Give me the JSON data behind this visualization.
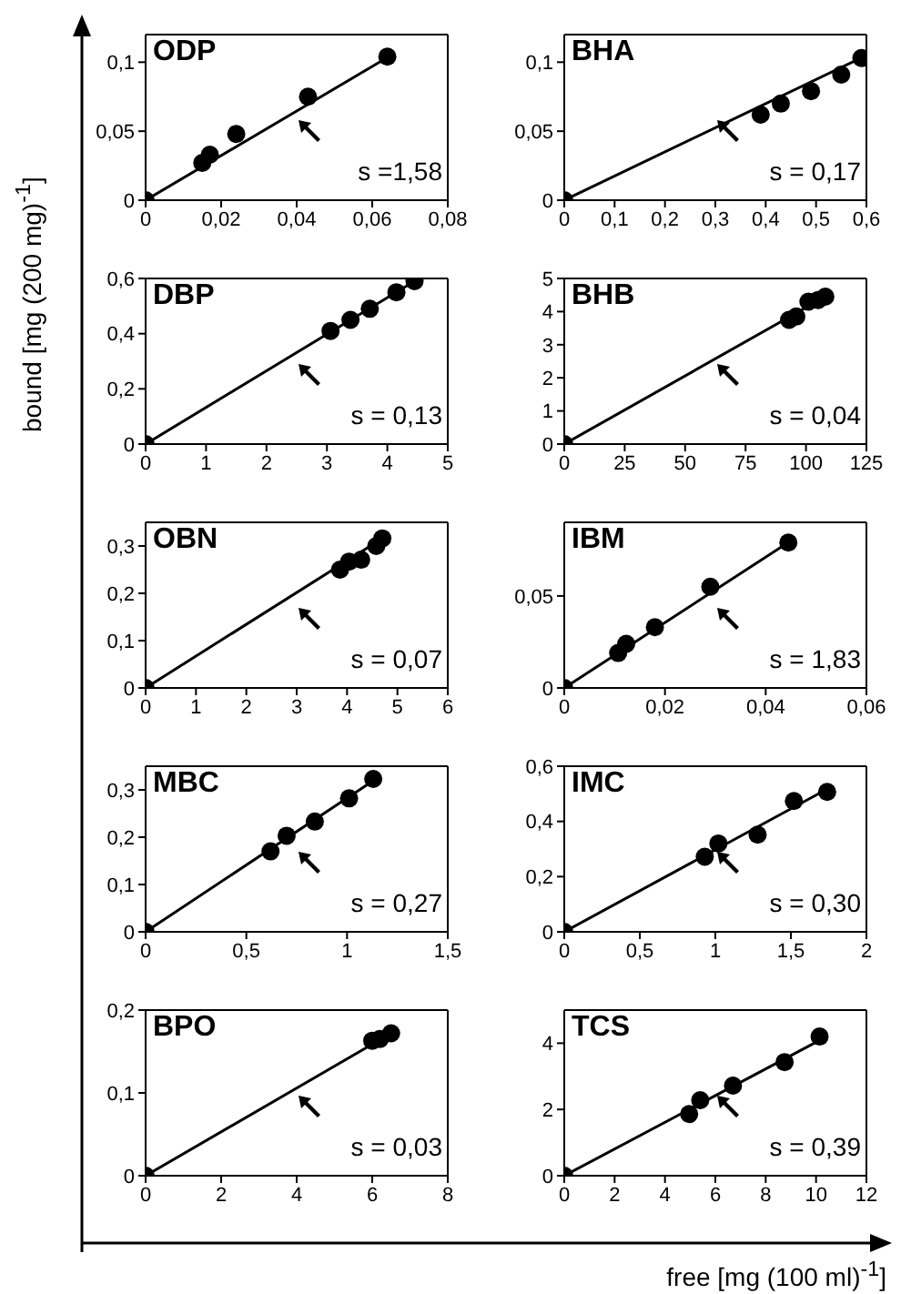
{
  "chart_data": [
    {
      "type": "scatter",
      "title": "ODP",
      "ylabel": "bound [mg (200 mg)$^{-1}$]",
      "xlim": [
        0,
        0.08
      ],
      "ylim": [
        0,
        0.12
      ],
      "xticks": [
        0,
        {
          "value": 0.02,
          "label": "0,02"
        },
        {
          "value": 0.04,
          "label": "0,04"
        },
        {
          "value": 0.06,
          "label": "0,06"
        },
        {
          "value": 0.08,
          "label": "0,08"
        }
      ],
      "yticks": [
        0,
        {
          "value": 0.05,
          "label": "0,05"
        },
        {
          "value": 0.1,
          "label": "0,1"
        }
      ],
      "annotations": [
        "s =1,58"
      ],
      "series": [
        {
          "type": "scatter",
          "color": "#000000",
          "marker": "circle",
          "x": [
            0,
            0.015,
            0.017,
            0.024,
            0.043,
            0.064
          ],
          "values": [
            0,
            0.027,
            0.033,
            0.048,
            0.075,
            0.104
          ]
        },
        {
          "type": "line",
          "color": "#000000",
          "marker": "none",
          "x": [
            0,
            0.065
          ],
          "values": [
            0,
            0.105
          ]
        }
      ]
    },
    {
      "type": "scatter",
      "title": "BHA",
      "xlim": [
        0,
        0.6
      ],
      "ylim": [
        0,
        0.12
      ],
      "xticks": [
        0,
        {
          "value": 0.1,
          "label": "0,1"
        },
        {
          "value": 0.2,
          "label": "0,2"
        },
        {
          "value": 0.3,
          "label": "0,3"
        },
        {
          "value": 0.4,
          "label": "0,4"
        },
        {
          "value": 0.5,
          "label": "0,5"
        },
        {
          "value": 0.6,
          "label": "0,6"
        }
      ],
      "yticks": [
        0,
        {
          "value": 0.05,
          "label": "0,05"
        },
        {
          "value": 0.1,
          "label": "0,1"
        }
      ],
      "annotations": [
        "s = 0,17"
      ],
      "series": [
        {
          "type": "scatter",
          "color": "#000000",
          "marker": "circle",
          "x": [
            0,
            0.39,
            0.43,
            0.49,
            0.55,
            0.59
          ],
          "values": [
            0,
            0.062,
            0.07,
            0.079,
            0.091,
            0.103
          ]
        },
        {
          "type": "line",
          "color": "#000000",
          "marker": "none",
          "x": [
            0,
            0.6
          ],
          "values": [
            0,
            0.105
          ]
        }
      ]
    },
    {
      "type": "scatter",
      "title": "DBP",
      "xlim": [
        0,
        5
      ],
      "ylim": [
        0,
        0.6
      ],
      "xticks": [
        0,
        1,
        2,
        3,
        4,
        5
      ],
      "yticks": [
        0,
        {
          "value": 0.2,
          "label": "0,2"
        },
        {
          "value": 0.4,
          "label": "0,4"
        },
        {
          "value": 0.6,
          "label": "0,6"
        }
      ],
      "annotations": [
        "s = 0,13"
      ],
      "series": [
        {
          "type": "scatter",
          "color": "#000000",
          "marker": "circle",
          "x": [
            0,
            3.06,
            3.39,
            3.71,
            4.15,
            4.45
          ],
          "values": [
            0,
            0.41,
            0.45,
            0.49,
            0.55,
            0.59
          ]
        },
        {
          "type": "line",
          "color": "#000000",
          "marker": "none",
          "x": [
            0,
            4.45
          ],
          "values": [
            0,
            0.59
          ]
        }
      ]
    },
    {
      "type": "scatter",
      "title": "BHB",
      "xlim": [
        0,
        125
      ],
      "ylim": [
        0,
        5
      ],
      "xticks": [
        0,
        25,
        50,
        75,
        100,
        125
      ],
      "yticks": [
        0,
        1,
        2,
        3,
        4,
        5
      ],
      "annotations": [
        "s = 0,04"
      ],
      "series": [
        {
          "type": "scatter",
          "color": "#000000",
          "marker": "circle",
          "x": [
            0,
            93,
            96,
            101,
            105,
            108
          ],
          "values": [
            0,
            3.75,
            3.85,
            4.3,
            4.35,
            4.45
          ]
        },
        {
          "type": "line",
          "color": "#000000",
          "marker": "none",
          "x": [
            0,
            108
          ],
          "values": [
            0,
            4.45
          ]
        }
      ]
    },
    {
      "type": "scatter",
      "title": "OBN",
      "xlim": [
        0,
        6
      ],
      "ylim": [
        0,
        0.35
      ],
      "xticks": [
        0,
        1,
        2,
        3,
        4,
        5,
        6
      ],
      "yticks": [
        0,
        {
          "value": 0.1,
          "label": "0,1"
        },
        {
          "value": 0.2,
          "label": "0,2"
        },
        {
          "value": 0.3,
          "label": "0,3"
        }
      ],
      "annotations": [
        "s = 0,07"
      ],
      "series": [
        {
          "type": "scatter",
          "color": "#000000",
          "marker": "circle",
          "x": [
            0,
            3.86,
            4.04,
            4.28,
            4.58,
            4.7
          ],
          "values": [
            0,
            0.25,
            0.267,
            0.271,
            0.3,
            0.316
          ]
        },
        {
          "type": "line",
          "color": "#000000",
          "marker": "none",
          "x": [
            0,
            4.7
          ],
          "values": [
            0,
            0.316
          ]
        }
      ]
    },
    {
      "type": "scatter",
      "title": "IBM",
      "xlim": [
        0,
        0.06
      ],
      "ylim": [
        0,
        0.09
      ],
      "xticks": [
        0,
        {
          "value": 0.02,
          "label": "0,02"
        },
        {
          "value": 0.04,
          "label": "0,04"
        },
        {
          "value": 0.06,
          "label": "0,06"
        }
      ],
      "yticks": [
        0,
        {
          "value": 0.05,
          "label": "0,05"
        }
      ],
      "annotations": [
        "s = 1,83"
      ],
      "series": [
        {
          "type": "scatter",
          "color": "#000000",
          "marker": "circle",
          "x": [
            0,
            0.0107,
            0.0123,
            0.018,
            0.029,
            0.0445
          ],
          "values": [
            0,
            0.019,
            0.024,
            0.033,
            0.055,
            0.079
          ]
        },
        {
          "type": "line",
          "color": "#000000",
          "marker": "none",
          "x": [
            0,
            0.045
          ],
          "values": [
            0,
            0.08
          ]
        }
      ]
    },
    {
      "type": "scatter",
      "title": "MBC",
      "xlim": [
        0,
        1.5
      ],
      "ylim": [
        0,
        0.35
      ],
      "xticks": [
        0,
        {
          "value": 0.5,
          "label": "0,5"
        },
        1,
        {
          "value": 1.5,
          "label": "1,5"
        }
      ],
      "yticks": [
        0,
        {
          "value": 0.1,
          "label": "0,1"
        },
        {
          "value": 0.2,
          "label": "0,2"
        },
        {
          "value": 0.3,
          "label": "0,3"
        }
      ],
      "annotations": [
        "s = 0,27"
      ],
      "series": [
        {
          "type": "scatter",
          "color": "#000000",
          "marker": "circle",
          "x": [
            0,
            0.62,
            0.7,
            0.84,
            1.01,
            1.13
          ],
          "values": [
            0,
            0.17,
            0.203,
            0.233,
            0.282,
            0.323
          ]
        },
        {
          "type": "line",
          "color": "#000000",
          "marker": "none",
          "x": [
            0,
            1.15
          ],
          "values": [
            0,
            0.325
          ]
        }
      ]
    },
    {
      "type": "scatter",
      "title": "IMC",
      "xlim": [
        0,
        2
      ],
      "ylim": [
        0,
        0.6
      ],
      "xticks": [
        0,
        {
          "value": 0.5,
          "label": "0,5"
        },
        1,
        {
          "value": 1.5,
          "label": "1,5"
        },
        2
      ],
      "yticks": [
        0,
        {
          "value": 0.2,
          "label": "0,2"
        },
        {
          "value": 0.4,
          "label": "0,4"
        },
        {
          "value": 0.6,
          "label": "0,6"
        }
      ],
      "annotations": [
        "s = 0,30"
      ],
      "series": [
        {
          "type": "scatter",
          "color": "#000000",
          "marker": "circle",
          "x": [
            0,
            0.93,
            1.02,
            1.28,
            1.52,
            1.74
          ],
          "values": [
            0,
            0.272,
            0.32,
            0.352,
            0.474,
            0.507
          ]
        },
        {
          "type": "line",
          "color": "#000000",
          "marker": "none",
          "x": [
            0,
            1.75
          ],
          "values": [
            0,
            0.52
          ]
        }
      ]
    },
    {
      "type": "scatter",
      "title": "BPO",
      "xlim": [
        0,
        8
      ],
      "ylim": [
        0,
        0.2
      ],
      "xticks": [
        0,
        2,
        4,
        6,
        8
      ],
      "yticks": [
        0,
        {
          "value": 0.1,
          "label": "0,1"
        },
        {
          "value": 0.2,
          "label": "0,2"
        }
      ],
      "annotations": [
        "s = 0,03"
      ],
      "series": [
        {
          "type": "scatter",
          "color": "#000000",
          "marker": "circle",
          "x": [
            0,
            6.0,
            6.2,
            6.3,
            6.5
          ],
          "values": [
            0,
            0.163,
            0.165,
            null,
            0.172
          ]
        },
        {
          "type": "line",
          "color": "#000000",
          "marker": "none",
          "x": [
            0,
            6.5
          ],
          "values": [
            0,
            0.172
          ]
        }
      ]
    },
    {
      "type": "scatter",
      "title": "TCS",
      "xlabel": "free [mg (100 ml)$^{-1}$]",
      "xlim": [
        0,
        12
      ],
      "ylim": [
        0,
        5
      ],
      "xticks": [
        0,
        2,
        4,
        6,
        8,
        10,
        12
      ],
      "yticks": [
        0,
        2,
        4
      ],
      "annotations": [
        "s = 0,39"
      ],
      "series": [
        {
          "type": "scatter",
          "color": "#000000",
          "marker": "circle",
          "x": [
            0,
            4.96,
            5.4,
            6.7,
            8.75,
            10.14
          ],
          "values": [
            0,
            1.86,
            2.28,
            2.72,
            3.43,
            4.2
          ]
        },
        {
          "type": "line",
          "color": "#000000",
          "marker": "none",
          "x": [
            0,
            10.3
          ],
          "values": [
            0,
            4.15
          ]
        }
      ]
    }
  ]
}
